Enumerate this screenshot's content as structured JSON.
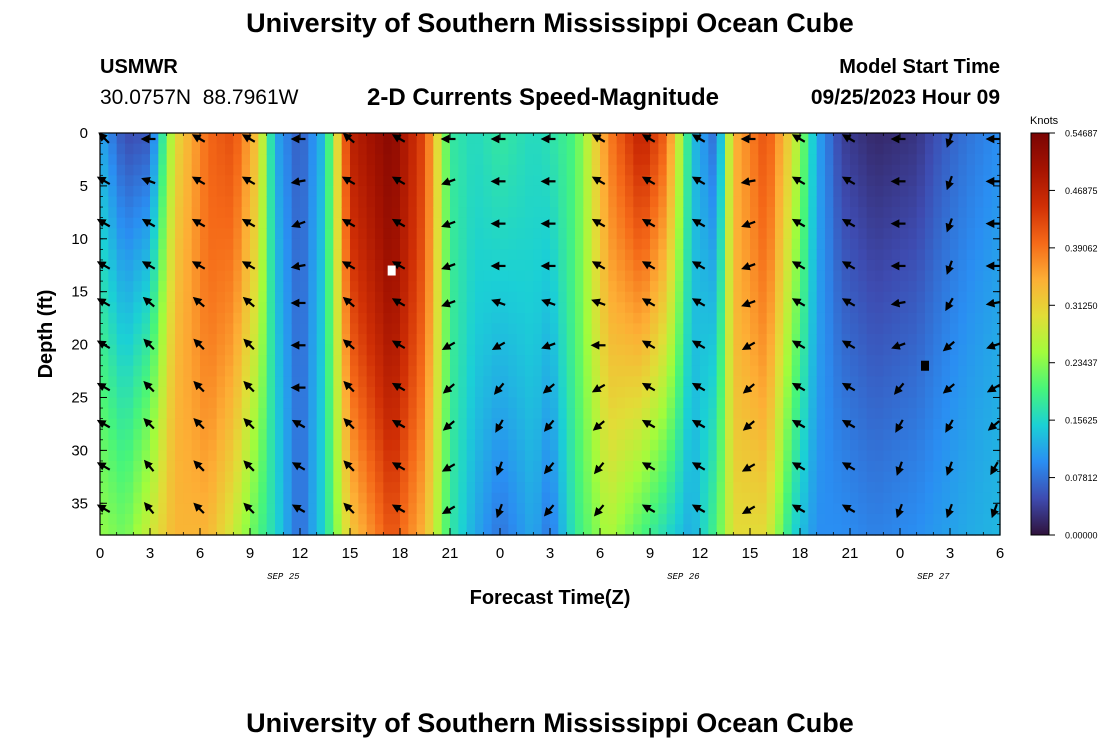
{
  "page": {
    "title_top": "University of Southern Mississippi Ocean Cube",
    "title_bottom": "University of Southern Mississippi Ocean Cube",
    "station_id": "USMWR",
    "station_coords": "30.0757N  88.7961W",
    "chart_title": "2-D Currents Speed-Magnitude",
    "model_start_label": "Model Start Time",
    "model_start_value": "09/25/2023 Hour 09"
  },
  "chart_data": {
    "type": "heatmap",
    "title": "2-D Currents Speed-Magnitude",
    "xlabel": "Forecast Time(Z)",
    "ylabel": "Depth (ft)",
    "x_ticks": [
      "0",
      "3",
      "6",
      "9",
      "12",
      "15",
      "18",
      "21",
      "0",
      "3",
      "6",
      "9",
      "12",
      "15",
      "18",
      "21",
      "0",
      "3",
      "6"
    ],
    "x_range_hours": [
      0,
      54
    ],
    "date_labels": [
      {
        "text": "SEP 25",
        "hour": 11
      },
      {
        "text": "SEP 26",
        "hour": 35
      },
      {
        "text": "SEP 27",
        "hour": 50
      }
    ],
    "y_ticks": [
      0,
      5,
      10,
      15,
      20,
      25,
      30,
      35
    ],
    "y_range_ft": [
      0,
      38
    ],
    "colorbar_title": "Knots",
    "colorbar_ticks": [
      "0.00000",
      "0.07812",
      "0.15625",
      "0.23437",
      "0.31250",
      "0.39062",
      "0.46875",
      "0.54687"
    ],
    "value_range": [
      0,
      0.54687
    ],
    "colors": [
      "#30123b",
      "#3e4bb0",
      "#2a8ef2",
      "#1bd0d5",
      "#47f57a",
      "#a2fc3c",
      "#e1dd37",
      "#fdae35",
      "#f56918",
      "#d02f05",
      "#a51301",
      "#7a0403"
    ],
    "speed_columns": [
      {
        "t": 0,
        "top": 0.12,
        "bottom": 0.24
      },
      {
        "t": 1.5,
        "top": 0.05,
        "bottom": 0.22
      },
      {
        "t": 3,
        "top": 0.06,
        "bottom": 0.28
      },
      {
        "t": 4.5,
        "top": 0.3,
        "bottom": 0.34
      },
      {
        "t": 6.5,
        "top": 0.4,
        "bottom": 0.34
      },
      {
        "t": 8,
        "top": 0.42,
        "bottom": 0.28
      },
      {
        "t": 9.5,
        "top": 0.32,
        "bottom": 0.2
      },
      {
        "t": 10.5,
        "top": 0.12,
        "bottom": 0.16
      },
      {
        "t": 12,
        "top": 0.06,
        "bottom": 0.07
      },
      {
        "t": 13.5,
        "top": 0.14,
        "bottom": 0.16
      },
      {
        "t": 15,
        "top": 0.47,
        "bottom": 0.32
      },
      {
        "t": 17.5,
        "top": 0.53,
        "bottom": 0.42
      },
      {
        "t": 19.5,
        "top": 0.42,
        "bottom": 0.34
      },
      {
        "t": 21,
        "top": 0.18,
        "bottom": 0.18
      },
      {
        "t": 22.5,
        "top": 0.16,
        "bottom": 0.12
      },
      {
        "t": 24,
        "top": 0.18,
        "bottom": 0.08
      },
      {
        "t": 26,
        "top": 0.16,
        "bottom": 0.12
      },
      {
        "t": 27,
        "top": 0.17,
        "bottom": 0.08
      },
      {
        "t": 28.5,
        "top": 0.2,
        "bottom": 0.18
      },
      {
        "t": 30.5,
        "top": 0.38,
        "bottom": 0.26
      },
      {
        "t": 32.5,
        "top": 0.47,
        "bottom": 0.2
      },
      {
        "t": 34,
        "top": 0.4,
        "bottom": 0.16
      },
      {
        "t": 35.5,
        "top": 0.14,
        "bottom": 0.12
      },
      {
        "t": 37,
        "top": 0.07,
        "bottom": 0.2
      },
      {
        "t": 38,
        "top": 0.34,
        "bottom": 0.3
      },
      {
        "t": 40,
        "top": 0.42,
        "bottom": 0.3
      },
      {
        "t": 41.5,
        "top": 0.3,
        "bottom": 0.16
      },
      {
        "t": 43,
        "top": 0.12,
        "bottom": 0.1
      },
      {
        "t": 44.5,
        "top": 0.04,
        "bottom": 0.1
      },
      {
        "t": 46.5,
        "top": 0.02,
        "bottom": 0.09
      },
      {
        "t": 49,
        "top": 0.03,
        "bottom": 0.1
      },
      {
        "t": 50.5,
        "top": 0.06,
        "bottom": 0.11
      },
      {
        "t": 52,
        "top": 0.08,
        "bottom": 0.12
      },
      {
        "t": 54,
        "top": 0.1,
        "bottom": 0.13
      }
    ],
    "markers": [
      {
        "label": "max",
        "t": 17.5,
        "depth": 13,
        "color": "#ffffff"
      },
      {
        "label": "min",
        "t": 49.5,
        "depth": 22,
        "color": "#000000"
      }
    ],
    "vector_times": [
      0,
      3,
      6,
      9,
      12,
      15,
      18,
      21,
      24,
      27,
      30,
      33,
      36,
      39,
      42,
      45,
      48,
      51,
      54
    ],
    "vector_depths": [
      0,
      4,
      8,
      12,
      15.5,
      19.5,
      23.5,
      27,
      31,
      35
    ],
    "vector_dirs_deg": [
      [
        315,
        300,
        300,
        300,
        300,
        300,
        300,
        300,
        300,
        300
      ],
      [
        270,
        290,
        300,
        300,
        310,
        315,
        315,
        315,
        320,
        320
      ],
      [
        300,
        300,
        300,
        300,
        310,
        315,
        315,
        315,
        315,
        315
      ],
      [
        300,
        300,
        300,
        300,
        310,
        315,
        315,
        315,
        315,
        315
      ],
      [
        270,
        260,
        250,
        260,
        270,
        270,
        270,
        300,
        300,
        300
      ],
      [
        310,
        300,
        300,
        300,
        310,
        310,
        315,
        315,
        315,
        315
      ],
      [
        300,
        300,
        300,
        300,
        300,
        300,
        300,
        300,
        300,
        300
      ],
      [
        270,
        250,
        250,
        250,
        250,
        240,
        230,
        230,
        240,
        240
      ],
      [
        270,
        270,
        270,
        270,
        290,
        240,
        220,
        210,
        200,
        200
      ],
      [
        270,
        270,
        270,
        270,
        290,
        250,
        230,
        220,
        220,
        220
      ],
      [
        300,
        300,
        300,
        300,
        290,
        270,
        240,
        230,
        220,
        220
      ],
      [
        300,
        300,
        300,
        300,
        300,
        300,
        300,
        300,
        300,
        300
      ],
      [
        300,
        300,
        300,
        300,
        300,
        300,
        300,
        300,
        300,
        300
      ],
      [
        270,
        260,
        250,
        250,
        250,
        240,
        230,
        230,
        240,
        240
      ],
      [
        300,
        300,
        300,
        300,
        300,
        300,
        300,
        300,
        300,
        300
      ],
      [
        300,
        300,
        300,
        300,
        300,
        300,
        300,
        300,
        300,
        300
      ],
      [
        270,
        270,
        270,
        270,
        260,
        250,
        220,
        210,
        200,
        200
      ],
      [
        200,
        200,
        200,
        200,
        210,
        230,
        230,
        210,
        200,
        200
      ],
      [
        270,
        270,
        270,
        270,
        260,
        250,
        240,
        230,
        210,
        200
      ]
    ]
  }
}
